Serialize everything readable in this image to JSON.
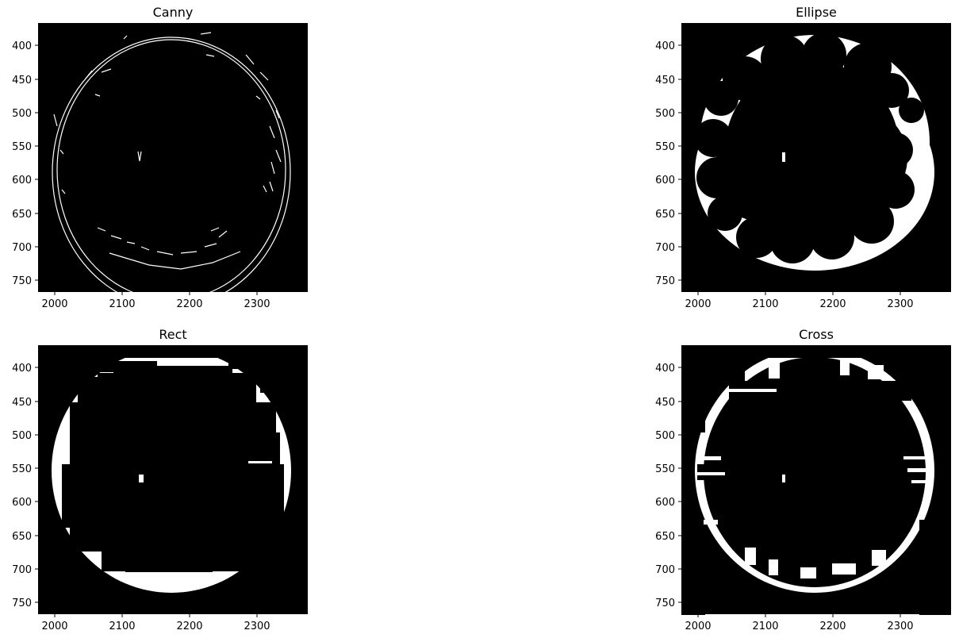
{
  "figure": {
    "panels": [
      {
        "title": "Canny",
        "kind": "edges"
      },
      {
        "title": "Ellipse",
        "kind": "ellipse"
      },
      {
        "title": "Rect",
        "kind": "rect"
      },
      {
        "title": "Cross",
        "kind": "cross"
      }
    ],
    "axes": {
      "x_ticks": [
        "2000",
        "2100",
        "2200",
        "2300"
      ],
      "x_tick_values": [
        2000,
        2100,
        2200,
        2300
      ],
      "y_ticks": [
        "400",
        "450",
        "500",
        "550",
        "600",
        "650",
        "700",
        "750"
      ],
      "y_tick_values": [
        400,
        450,
        500,
        550,
        600,
        650,
        700,
        750
      ],
      "x_range": [
        1975,
        2375
      ],
      "y_range": [
        770,
        370
      ]
    },
    "colors": {
      "background": "#000000",
      "foreground": "#ffffff"
    }
  }
}
